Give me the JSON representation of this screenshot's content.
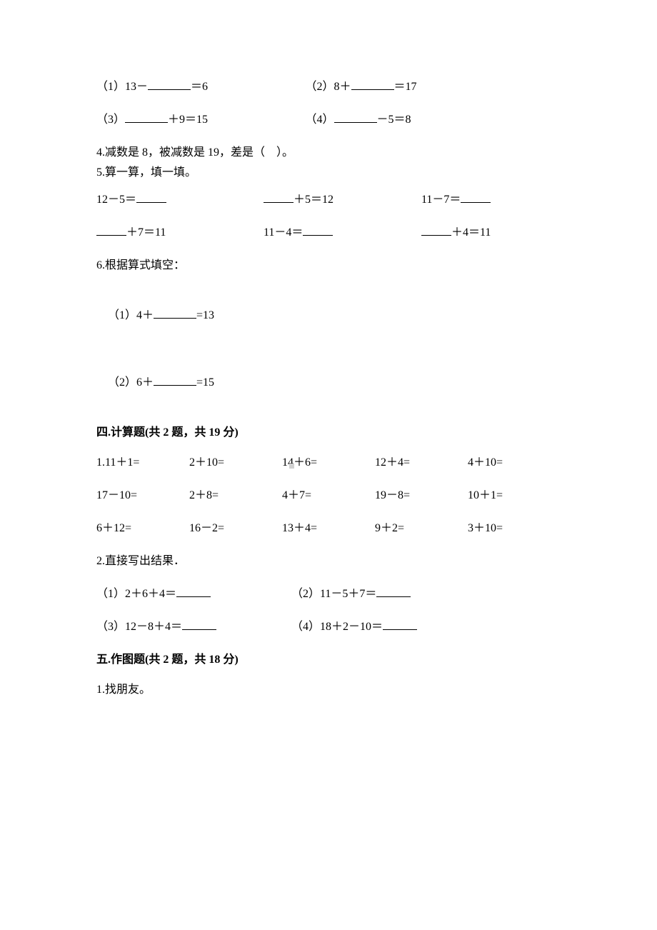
{
  "q3": {
    "item1": {
      "label": "（1）13－",
      "suffix": "＝6"
    },
    "item2": {
      "label": "（2）8＋",
      "suffix": "＝17"
    },
    "item3": {
      "label": "（3）",
      "suffix": "＋9＝15"
    },
    "item4": {
      "label": "（4）",
      "suffix": "－5＝8"
    }
  },
  "q4": "4.减数是 8，被减数是 19，差是（    ）。",
  "q5": {
    "title": "5.算一算，填一填。",
    "r1a_pre": "12－5＝",
    "r1b_suf": "＋5＝12",
    "r1c_pre": "11－7＝",
    "r2a_suf": "＋7＝11",
    "r2b_pre": "11－4＝",
    "r2c_suf": "＋4＝11"
  },
  "q6": {
    "title": "6.根据算式填空：",
    "item1_pre": "（1）4＋",
    "item1_suf": "=13",
    "item2_pre": "（2）6＋",
    "item2_suf": "=15"
  },
  "sec4": {
    "heading": "四.计算题(共 2 题，共 19 分)",
    "q1_prefix": "1.",
    "row1": [
      "11＋1=",
      "2＋10=",
      "14＋6=",
      "12＋4=",
      "4＋10="
    ],
    "row2": [
      "17－10=",
      "2＋8=",
      "4＋7=",
      "19－8=",
      "10＋1="
    ],
    "row3": [
      "6＋12=",
      "16－2=",
      "13＋4=",
      "9＋2=",
      "3＋10="
    ],
    "q2_title": "2.直接写出结果．",
    "q2a": {
      "pre": "（1）2＋6＋4＝"
    },
    "q2b": {
      "pre": "（2）11－5＋7＝"
    },
    "q2c": {
      "pre": "（3）12－8＋4＝"
    },
    "q2d": {
      "pre": "（4）18＋2－10＝"
    }
  },
  "sec5": {
    "heading": "五.作图题(共 2 题，共 18 分)",
    "q1": "1.找朋友。"
  }
}
